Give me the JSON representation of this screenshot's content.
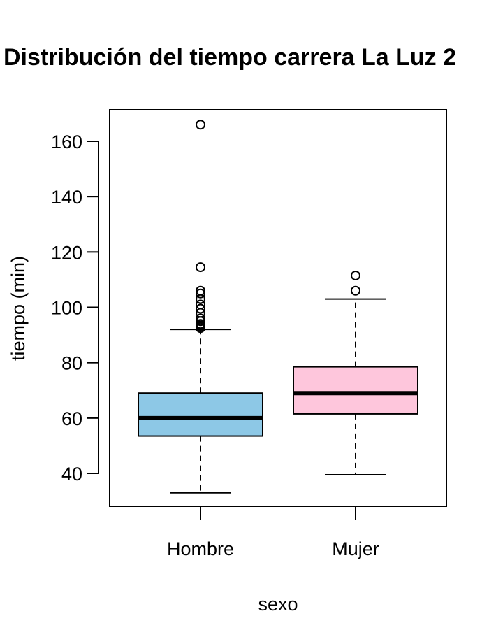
{
  "chart_data": {
    "type": "box",
    "title": "Distribución del tiempo carrera La Luz 2",
    "xlabel": "sexo",
    "ylabel": "tiempo (min)",
    "ylim": [
      28,
      171
    ],
    "yticks": [
      40,
      60,
      80,
      100,
      120,
      140,
      160
    ],
    "ytick_labels": [
      "40",
      "60",
      "80",
      "100",
      "120",
      "140",
      "160"
    ],
    "grid": false,
    "legend": "none",
    "categories": [
      "Hombre",
      "Mujer"
    ],
    "boxes": [
      {
        "category": "Hombre",
        "color": "#8dc8e6",
        "min": 33,
        "q1": 53.5,
        "median": 60,
        "q3": 69,
        "max": 92,
        "outliers": [
          92.5,
          93,
          93.5,
          94,
          95,
          96,
          98,
          99.5,
          101,
          103,
          105,
          106,
          114.5,
          166
        ]
      },
      {
        "category": "Mujer",
        "color": "#fec6dc",
        "min": 39.5,
        "q1": 61.5,
        "median": 69,
        "q3": 78.5,
        "max": 103,
        "outliers": [
          106,
          111.5
        ]
      }
    ]
  }
}
